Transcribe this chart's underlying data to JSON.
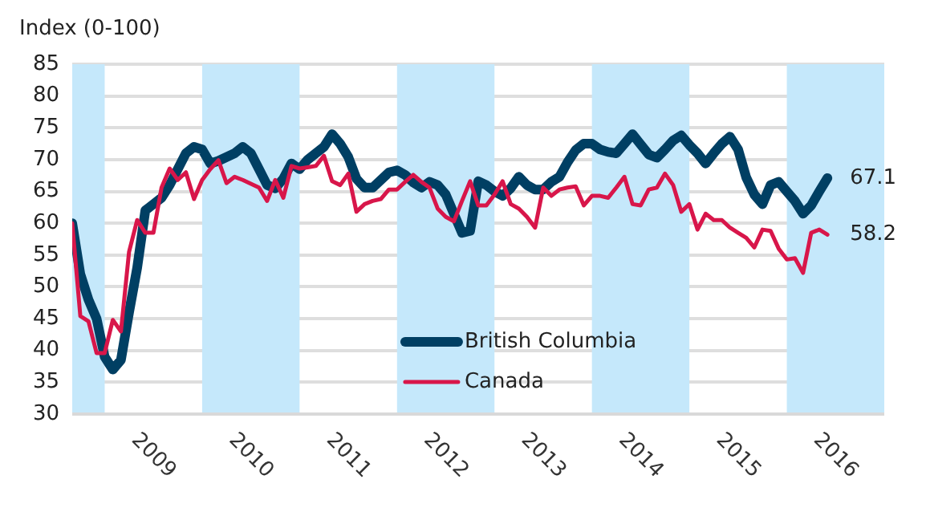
{
  "chart_data": {
    "type": "line",
    "ylabel": "Index (0-100)",
    "x": [
      "2008-09",
      "2008-10",
      "2008-11",
      "2008-12",
      "2009-01",
      "2009-02",
      "2009-03",
      "2009-04",
      "2009-05",
      "2009-06",
      "2009-07",
      "2009-08",
      "2009-09",
      "2009-10",
      "2009-11",
      "2009-12",
      "2010-01",
      "2010-02",
      "2010-03",
      "2010-04",
      "2010-05",
      "2010-06",
      "2010-07",
      "2010-08",
      "2010-09",
      "2010-10",
      "2010-11",
      "2010-12",
      "2011-01",
      "2011-02",
      "2011-03",
      "2011-04",
      "2011-05",
      "2011-06",
      "2011-07",
      "2011-08",
      "2011-09",
      "2011-10",
      "2011-11",
      "2011-12",
      "2012-01",
      "2012-02",
      "2012-03",
      "2012-04",
      "2012-05",
      "2012-06",
      "2012-07",
      "2012-08",
      "2012-09",
      "2012-10",
      "2012-11",
      "2012-12",
      "2013-01",
      "2013-02",
      "2013-03",
      "2013-04",
      "2013-05",
      "2013-06",
      "2013-07",
      "2013-08",
      "2013-09",
      "2013-10",
      "2013-11",
      "2013-12",
      "2014-01",
      "2014-02",
      "2014-03",
      "2014-04",
      "2014-05",
      "2014-06",
      "2014-07",
      "2014-08",
      "2014-09",
      "2014-10",
      "2014-11",
      "2014-12",
      "2015-01",
      "2015-02",
      "2015-03",
      "2015-04",
      "2015-05",
      "2015-06",
      "2015-07",
      "2015-08",
      "2015-09",
      "2015-10",
      "2015-11",
      "2015-12",
      "2016-01",
      "2016-02",
      "2016-03",
      "2016-04",
      "2016-05",
      "2016-06"
    ],
    "series": [
      {
        "name": "British Columbia",
        "color": "#003f63",
        "values": [
          60,
          52,
          48,
          45,
          39,
          37,
          38.5,
          46,
          53,
          62,
          63,
          64,
          66,
          68.5,
          71,
          72,
          71.6,
          69.4,
          69.8,
          70.4,
          71,
          72,
          71,
          68.5,
          66,
          65.5,
          67,
          69.4,
          68.5,
          70,
          71,
          72,
          74,
          72.5,
          70.4,
          67,
          65.6,
          65.6,
          66.8,
          68,
          68.3,
          67.6,
          66.4,
          65.6,
          66.5,
          66,
          64.5,
          61.5,
          58.5,
          58.8,
          66.6,
          66,
          65,
          64.3,
          65.5,
          67.3,
          66,
          65.3,
          65.3,
          66.5,
          67.3,
          69.6,
          71.5,
          72.5,
          72.5,
          71.6,
          71.2,
          71,
          72.5,
          74,
          72.4,
          70.8,
          70.3,
          71.6,
          73,
          73.8,
          72.3,
          71,
          69.4,
          71,
          72.5,
          73.6,
          71.6,
          67.2,
          64.5,
          63,
          66,
          66.5,
          65,
          63.5,
          61.5,
          62.8,
          65,
          67.1
        ]
      },
      {
        "name": "Canada",
        "color": "#d8164a",
        "values": [
          60,
          45.4,
          44.6,
          39.6,
          39.6,
          44.8,
          43,
          55.5,
          60.5,
          58.5,
          58.5,
          65.6,
          68.6,
          66.8,
          68,
          63.8,
          66.8,
          68.5,
          69.9,
          66.3,
          67.3,
          66.8,
          66.2,
          65.6,
          63.5,
          66.8,
          64,
          69,
          68.6,
          68.8,
          69,
          70.6,
          66.6,
          66,
          67.8,
          61.8,
          63,
          63.5,
          63.8,
          65.3,
          65.3,
          66.5,
          67.6,
          66.5,
          65.6,
          62.3,
          61,
          60.3,
          63.5,
          66.6,
          62.8,
          62.8,
          64.5,
          66.6,
          63,
          62.3,
          61,
          59.3,
          65.6,
          64.3,
          65.3,
          65.6,
          65.8,
          62.8,
          64.3,
          64.3,
          64,
          65.6,
          67.3,
          63,
          62.8,
          65.3,
          65.6,
          67.8,
          66,
          61.8,
          63,
          59,
          61.5,
          60.5,
          60.5,
          59.3,
          58.5,
          57.7,
          56.2,
          59,
          58.8,
          56,
          54.3,
          54.5,
          52.2,
          58.5,
          59,
          58.2
        ]
      }
    ],
    "xlim": [
      "2008-09",
      "2017-01"
    ],
    "xticks": [
      {
        "value": "2009-07",
        "label": "2009"
      },
      {
        "value": "2010-07",
        "label": "2010"
      },
      {
        "value": "2011-07",
        "label": "2011"
      },
      {
        "value": "2012-07",
        "label": "2012"
      },
      {
        "value": "2013-07",
        "label": "2013"
      },
      {
        "value": "2014-07",
        "label": "2014"
      },
      {
        "value": "2015-07",
        "label": "2015"
      },
      {
        "value": "2016-07",
        "label": "2016"
      }
    ],
    "ylim": [
      30,
      85
    ],
    "yticks": [
      30,
      35,
      40,
      45,
      50,
      55,
      60,
      65,
      70,
      75,
      80,
      85
    ],
    "bands": [
      {
        "axis": "x",
        "from": "2008-09",
        "to": "2009-01",
        "color": "#c5e8fb"
      },
      {
        "axis": "x",
        "from": "2010-01",
        "to": "2011-01",
        "color": "#c5e8fb"
      },
      {
        "axis": "x",
        "from": "2012-01",
        "to": "2013-01",
        "color": "#c5e8fb"
      },
      {
        "axis": "x",
        "from": "2014-01",
        "to": "2015-01",
        "color": "#c5e8fb"
      },
      {
        "axis": "x",
        "from": "2016-01",
        "to": "2017-01",
        "color": "#c5e8fb"
      }
    ],
    "annotations": [
      {
        "text": "67.1",
        "x": "2016-06",
        "y": 67.1
      },
      {
        "text": "58.2",
        "x": "2016-06",
        "y": 58.2
      }
    ],
    "grid": "y",
    "legend": "bottom",
    "marker": "none",
    "line_style": "solid"
  }
}
